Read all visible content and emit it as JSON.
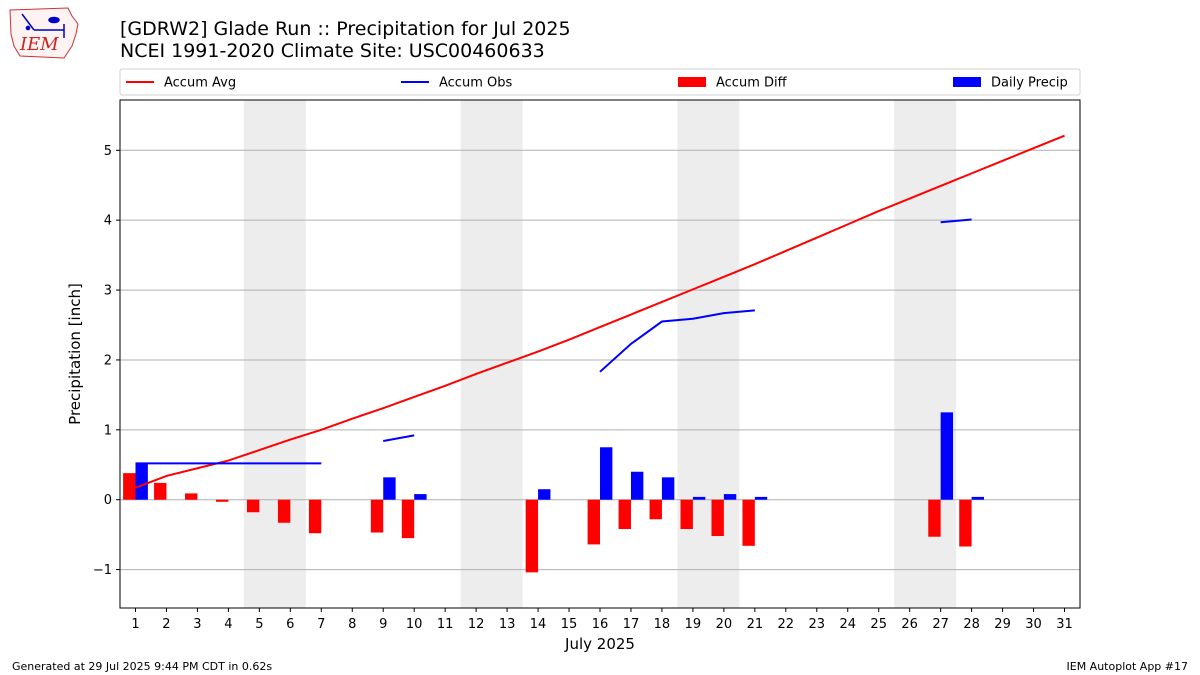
{
  "header": {
    "title_line1": "[GDRW2] Glade Run :: Precipitation for Jul 2025",
    "title_line2": "NCEI 1991-2020 Climate Site: USC00460633"
  },
  "logo": {
    "text": "IEM"
  },
  "footer": {
    "generated": "Generated at 29 Jul 2025 9:44 PM CDT in 0.62s",
    "app": "IEM Autoplot App #17"
  },
  "colors": {
    "avg": "#ff0000",
    "obs": "#0000ff",
    "diff": "#ff0000",
    "daily": "#0000ff",
    "weekend": "#ededed",
    "grid": "#b0b0b0"
  },
  "chart_data": {
    "type": "bar",
    "title": "[GDRW2] Glade Run :: Precipitation for Jul 2025",
    "xlabel": "July 2025",
    "ylabel": "Precipitation [inch]",
    "xlim": [
      0.5,
      31.5
    ],
    "ylim": [
      -1.55,
      5.72
    ],
    "yticks": [
      -1,
      0,
      1,
      2,
      3,
      4,
      5
    ],
    "ytick_labels": [
      "−1",
      "0",
      "1",
      "2",
      "3",
      "4",
      "5"
    ],
    "categories": [
      "1",
      "2",
      "3",
      "4",
      "5",
      "6",
      "7",
      "8",
      "9",
      "10",
      "11",
      "12",
      "13",
      "14",
      "15",
      "16",
      "17",
      "18",
      "19",
      "20",
      "21",
      "22",
      "23",
      "24",
      "25",
      "26",
      "27",
      "28",
      "29",
      "30",
      "31"
    ],
    "shaded_days": [
      [
        5,
        6
      ],
      [
        12,
        13
      ],
      [
        19,
        20
      ],
      [
        26,
        27
      ]
    ],
    "legend": [
      "Accum Avg",
      "Accum Obs",
      "Accum Diff",
      "Daily Precip"
    ],
    "series": [
      {
        "name": "Accum Avg",
        "kind": "line",
        "values": [
          0.17,
          0.34,
          0.45,
          0.56,
          0.71,
          0.86,
          1.0,
          1.16,
          1.31,
          1.47,
          1.63,
          1.8,
          1.96,
          2.12,
          2.29,
          2.47,
          2.65,
          2.83,
          3.01,
          3.19,
          3.37,
          3.56,
          3.75,
          3.94,
          4.13,
          4.31,
          4.49,
          4.67,
          4.85,
          5.03,
          5.21
        ]
      },
      {
        "name": "Accum Obs",
        "kind": "line",
        "segments": [
          {
            "x": [
              1,
              2,
              3,
              4,
              5,
              6,
              7
            ],
            "y": [
              0.52,
              0.52,
              0.52,
              0.52,
              0.52,
              0.52,
              0.52
            ]
          },
          {
            "x": [
              9,
              10
            ],
            "y": [
              0.84,
              0.92
            ]
          },
          {
            "x": [
              16,
              17,
              18,
              19,
              20,
              21
            ],
            "y": [
              1.83,
              2.23,
              2.55,
              2.59,
              2.67,
              2.71
            ]
          },
          {
            "x": [
              27,
              28
            ],
            "y": [
              3.97,
              4.01
            ]
          }
        ]
      },
      {
        "name": "Accum Diff",
        "kind": "bar",
        "x": [
          1,
          2,
          3,
          4,
          5,
          6,
          7,
          9,
          10,
          14,
          16,
          17,
          18,
          19,
          20,
          21,
          27,
          28
        ],
        "values": [
          0.38,
          0.24,
          0.09,
          -0.03,
          -0.18,
          -0.33,
          -0.48,
          -0.47,
          -0.55,
          -1.04,
          -0.64,
          -0.42,
          -0.28,
          -0.42,
          -0.52,
          -0.66,
          -0.53,
          -0.67
        ]
      },
      {
        "name": "Daily Precip",
        "kind": "bar",
        "x": [
          1,
          9,
          10,
          14,
          16,
          17,
          18,
          19,
          20,
          21,
          27,
          28
        ],
        "values": [
          0.52,
          0.32,
          0.08,
          0.15,
          0.75,
          0.4,
          0.32,
          0.04,
          0.08,
          0.04,
          1.25,
          0.04
        ]
      }
    ]
  }
}
